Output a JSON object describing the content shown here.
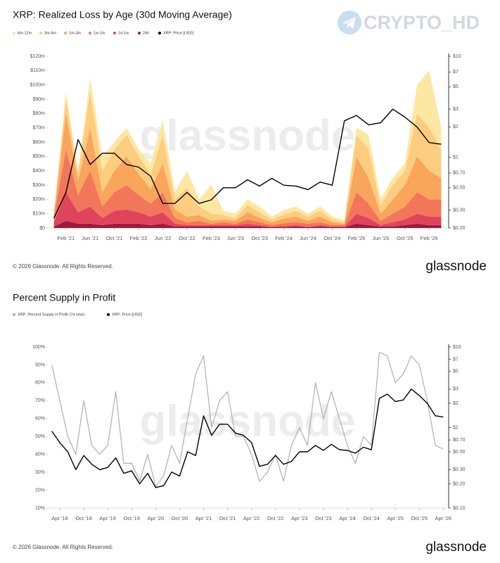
{
  "page_watermark": "CRYPTO_HD",
  "chart_data": [
    {
      "type": "stacked_area",
      "title": "XRP: Realized Loss by Age (30d Moving Average)",
      "watermark": "glassnode",
      "footer": "© 2026 Glassnode. All Rights Reserved.",
      "logo": "glassnode",
      "categories": [
        null,
        "Feb '21",
        null,
        "Jun '21",
        null,
        "Oct '21",
        null,
        "Feb '22",
        null,
        "Jun '22",
        null,
        "Oct '22",
        null,
        "Feb '23",
        null,
        "Jun '23",
        null,
        "Oct '23",
        null,
        "Feb '24",
        null,
        "Jun '24",
        null,
        "Oct '24",
        null,
        "Feb '25",
        null,
        "Jun '25",
        null,
        "Oct '25",
        null,
        "Feb '26",
        null
      ],
      "series": [
        {
          "name": "6m-12m",
          "color": "#fde7a1",
          "values": [
            0,
            5,
            2,
            10,
            10,
            5,
            5,
            5,
            8,
            10,
            5,
            12,
            5,
            20,
            3,
            3,
            4,
            4,
            2,
            3,
            3,
            2,
            3,
            2,
            1,
            5,
            10,
            4,
            5,
            5,
            20,
            40,
            15
          ]
        },
        {
          "name": "3m-6m",
          "color": "#fccd7e",
          "values": [
            1,
            10,
            5,
            25,
            15,
            15,
            15,
            12,
            10,
            20,
            7,
            20,
            6,
            5,
            3,
            2,
            5,
            4,
            2,
            3,
            4,
            3,
            4,
            2,
            1,
            15,
            20,
            6,
            10,
            10,
            30,
            30,
            20
          ]
        },
        {
          "name": "1m-3m",
          "color": "#f9a55c",
          "values": [
            2,
            25,
            10,
            30,
            10,
            15,
            20,
            15,
            10,
            20,
            6,
            4,
            4,
            2,
            2,
            2,
            5,
            3,
            2,
            3,
            4,
            2,
            4,
            2,
            1,
            25,
            18,
            5,
            10,
            15,
            25,
            20,
            15
          ]
        },
        {
          "name": "1w-1m",
          "color": "#f27659",
          "values": [
            3,
            30,
            12,
            25,
            8,
            13,
            17,
            12,
            9,
            14,
            4,
            2,
            3,
            1,
            2,
            1,
            3,
            2,
            1,
            2,
            2,
            2,
            2,
            1,
            1,
            15,
            10,
            3,
            6,
            9,
            15,
            12,
            12
          ]
        },
        {
          "name": "1d-1w",
          "color": "#e0445c",
          "values": [
            3,
            20,
            8,
            12,
            5,
            9,
            10,
            8,
            6,
            8,
            2,
            1,
            1,
            1,
            1,
            1,
            2,
            1,
            0.5,
            1,
            1,
            0.5,
            1,
            0.5,
            0.5,
            7,
            5,
            1,
            3,
            4,
            7,
            6,
            6
          ]
        },
        {
          "name": "24h",
          "color": "#9b1b3e",
          "values": [
            1,
            5,
            3,
            3,
            2,
            3,
            3,
            3,
            2,
            3,
            1,
            1,
            1,
            1,
            1,
            1,
            1,
            1,
            0.5,
            0.5,
            1,
            0.5,
            1,
            0.5,
            0.5,
            3,
            2,
            1,
            1,
            2,
            3,
            2,
            2
          ]
        },
        {
          "name": "XRP: Price [USD]",
          "color": "#000000",
          "axis": "y2",
          "values": [
            0.25,
            0.45,
            1.5,
            0.85,
            1.1,
            1.1,
            0.85,
            0.8,
            0.65,
            0.35,
            0.35,
            0.45,
            0.35,
            0.38,
            0.5,
            0.5,
            0.6,
            0.52,
            0.62,
            0.53,
            0.52,
            0.48,
            0.57,
            0.53,
            2.3,
            2.6,
            2.1,
            2.2,
            3.0,
            2.5,
            2.0,
            1.4,
            1.35
          ]
        }
      ],
      "ylim": [
        0,
        120
      ],
      "yticks": [
        {
          "value": 0,
          "label": "$0"
        },
        {
          "value": 10,
          "label": "$10m"
        },
        {
          "value": 20,
          "label": "$20m"
        },
        {
          "value": 30,
          "label": "$30m"
        },
        {
          "value": 40,
          "label": "$40m"
        },
        {
          "value": 50,
          "label": "$50m"
        },
        {
          "value": 60,
          "label": "$60m"
        },
        {
          "value": 70,
          "label": "$70m"
        },
        {
          "value": 80,
          "label": "$80m"
        },
        {
          "value": 90,
          "label": "$90m"
        },
        {
          "value": 100,
          "label": "$100m"
        },
        {
          "value": 110,
          "label": "$110m"
        },
        {
          "value": 120,
          "label": "$120m"
        }
      ],
      "y2lim": [
        0.2,
        10
      ],
      "y2log": true,
      "y2ticks": [
        {
          "value": 0.2,
          "label": "$0.20"
        },
        {
          "value": 0.3,
          "label": "$0.30"
        },
        {
          "value": 0.5,
          "label": "$0.50"
        },
        {
          "value": 0.7,
          "label": "$0.70"
        },
        {
          "value": 1,
          "label": "$1"
        },
        {
          "value": 2,
          "label": "$2"
        },
        {
          "value": 3,
          "label": "$3"
        },
        {
          "value": 5,
          "label": "$5"
        },
        {
          "value": 7,
          "label": "$7"
        },
        {
          "value": 10,
          "label": "$10"
        }
      ]
    },
    {
      "type": "line",
      "title": "Percent Supply in Profit",
      "watermark": "glassnode",
      "footer": "© 2026 Glassnode. All Rights Reserved.",
      "logo": "glassnode",
      "categories": [
        null,
        "Apr '18",
        null,
        null,
        "Oct '18",
        null,
        null,
        "Apr '19",
        null,
        null,
        "Oct '19",
        null,
        null,
        "Apr '20",
        null,
        null,
        "Oct '20",
        null,
        null,
        "Apr '21",
        null,
        null,
        "Oct '21",
        null,
        null,
        "Apr '22",
        null,
        null,
        "Oct '22",
        null,
        null,
        "Apr '23",
        null,
        null,
        "Oct '23",
        null,
        null,
        "Apr '24",
        null,
        null,
        "Oct '24",
        null,
        null,
        "Apr '25",
        null,
        null,
        "Oct '25",
        null,
        null,
        "Apr '26"
      ],
      "series": [
        {
          "name": "XRP: Percent Supply in Profit (7d sma)",
          "color": "#b0b0b0",
          "values": [
            90,
            70,
            50,
            40,
            70,
            45,
            40,
            45,
            75,
            35,
            35,
            25,
            40,
            22,
            28,
            45,
            35,
            60,
            85,
            95,
            55,
            70,
            75,
            50,
            50,
            40,
            25,
            30,
            40,
            25,
            45,
            55,
            45,
            80,
            60,
            75,
            60,
            45,
            35,
            50,
            45,
            97,
            95,
            80,
            85,
            95,
            90,
            70,
            45,
            43
          ]
        },
        {
          "name": "XRP: Price [USD]",
          "color": "#000000",
          "axis": "y2",
          "values": [
            0.9,
            0.65,
            0.5,
            0.3,
            0.45,
            0.35,
            0.3,
            0.32,
            0.42,
            0.27,
            0.29,
            0.2,
            0.27,
            0.18,
            0.19,
            0.28,
            0.25,
            0.5,
            0.45,
            1.4,
            0.8,
            1.1,
            1.1,
            0.85,
            0.8,
            0.65,
            0.33,
            0.35,
            0.45,
            0.35,
            0.38,
            0.5,
            0.5,
            0.6,
            0.52,
            0.62,
            0.53,
            0.52,
            0.48,
            0.57,
            0.53,
            2.3,
            2.6,
            2.1,
            2.2,
            3.0,
            2.5,
            2.0,
            1.4,
            1.35
          ]
        }
      ],
      "ylim": [
        10,
        100
      ],
      "yticks": [
        {
          "value": 10,
          "label": "10%"
        },
        {
          "value": 20,
          "label": "20%"
        },
        {
          "value": 30,
          "label": "30%"
        },
        {
          "value": 40,
          "label": "40%"
        },
        {
          "value": 50,
          "label": "50%"
        },
        {
          "value": 60,
          "label": "60%"
        },
        {
          "value": 70,
          "label": "70%"
        },
        {
          "value": 80,
          "label": "80%"
        },
        {
          "value": 90,
          "label": "90%"
        },
        {
          "value": 100,
          "label": "100%"
        }
      ],
      "y2lim": [
        0.1,
        10
      ],
      "y2log": true,
      "y2ticks": [
        {
          "value": 0.1,
          "label": "$0.10"
        },
        {
          "value": 0.2,
          "label": "$0.20"
        },
        {
          "value": 0.3,
          "label": "$0.30"
        },
        {
          "value": 0.5,
          "label": "$0.50"
        },
        {
          "value": 0.7,
          "label": "$0.70"
        },
        {
          "value": 1,
          "label": "$1"
        },
        {
          "value": 2,
          "label": "$2"
        },
        {
          "value": 3,
          "label": "$3"
        },
        {
          "value": 5,
          "label": "$5"
        },
        {
          "value": 7,
          "label": "$7"
        },
        {
          "value": 10,
          "label": "$10"
        }
      ]
    }
  ]
}
